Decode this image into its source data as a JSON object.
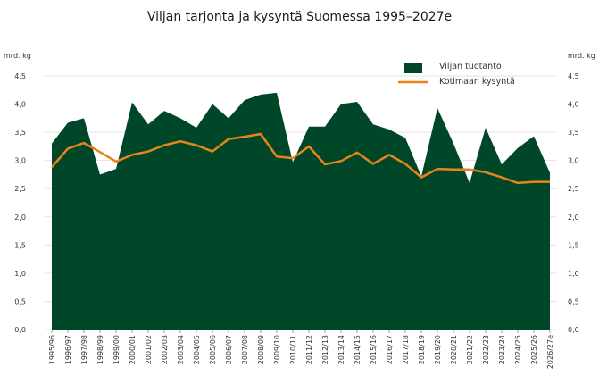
{
  "chart_data": {
    "type": "area",
    "title": "Viljan tarjonta ja kysyntä Suomessa 1995–2027e",
    "unit_label": "mrd. kg",
    "categories": [
      "1995/96",
      "1996/97",
      "1997/98",
      "1998/99",
      "1999/00",
      "2000/01",
      "2001/02",
      "2002/03",
      "2003/04",
      "2004/05",
      "2005/06",
      "2006/07",
      "2007/08",
      "2008/09",
      "2009/10",
      "2010/11",
      "2011/12",
      "2012/13",
      "2013/14",
      "2014/15",
      "2015/16",
      "2016/17",
      "2017/18",
      "2018/19",
      "2019/20",
      "2020/21",
      "2021/22",
      "2022/23",
      "2023/24",
      "2024/25",
      "2025/26",
      "2026/27e"
    ],
    "y_ticks": [
      "0,0",
      "0,5",
      "1,0",
      "1,5",
      "2,0",
      "2,5",
      "3,0",
      "3,5",
      "4,0",
      "4,5"
    ],
    "ylim": [
      0,
      4.5
    ],
    "grid": true,
    "legend_position": "top-right",
    "series": [
      {
        "name": "Viljan tuotanto",
        "type": "area",
        "color": "#00472a",
        "values": [
          3.3,
          3.67,
          3.75,
          2.75,
          2.85,
          4.03,
          3.64,
          3.88,
          3.75,
          3.58,
          4.0,
          3.75,
          4.07,
          4.17,
          4.2,
          2.97,
          3.6,
          3.6,
          4.0,
          4.04,
          3.64,
          3.55,
          3.4,
          2.72,
          3.93,
          3.3,
          2.6,
          3.58,
          2.93,
          3.22,
          3.43,
          2.78
        ]
      },
      {
        "name": "Kotimaan kysyntä",
        "type": "line",
        "color": "#e8841a",
        "values": [
          2.88,
          3.21,
          3.31,
          3.15,
          2.98,
          3.1,
          3.16,
          3.27,
          3.34,
          3.27,
          3.16,
          3.38,
          3.42,
          3.47,
          3.07,
          3.04,
          3.25,
          2.93,
          2.99,
          3.14,
          2.94,
          3.1,
          2.94,
          2.7,
          2.85,
          2.84,
          2.84,
          2.79,
          2.7,
          2.6,
          2.62,
          2.62
        ]
      }
    ]
  }
}
